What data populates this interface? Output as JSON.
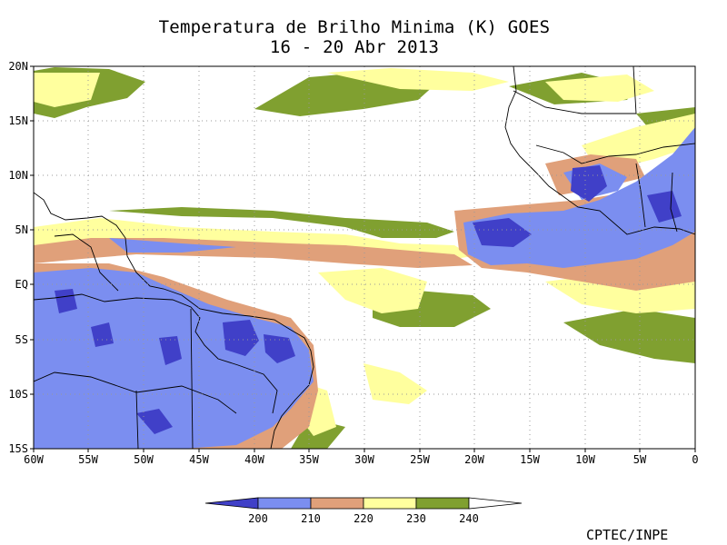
{
  "title": {
    "line1": "Temperatura de Brilho Minima (K) GOES",
    "line2": "16 - 20 Abr 2013"
  },
  "map": {
    "lat_labels": [
      "20N",
      "15N",
      "10N",
      "5N",
      "EQ",
      "5S",
      "10S",
      "15S"
    ],
    "lon_labels": [
      "60W",
      "55W",
      "50W",
      "45W",
      "40W",
      "35W",
      "30W",
      "25W",
      "20W",
      "15W",
      "10W",
      "5W",
      "0"
    ],
    "lat_range": [
      -15,
      20
    ],
    "lon_range": [
      -60,
      0
    ]
  },
  "legend": {
    "ticks": [
      "200",
      "210",
      "220",
      "230",
      "240"
    ],
    "colors": [
      "#4040c8",
      "#7b8ef0",
      "#e0a07a",
      "#ffff9e",
      "#80a030",
      "#ffffff"
    ]
  },
  "credit": "CPTEC/INPE"
}
